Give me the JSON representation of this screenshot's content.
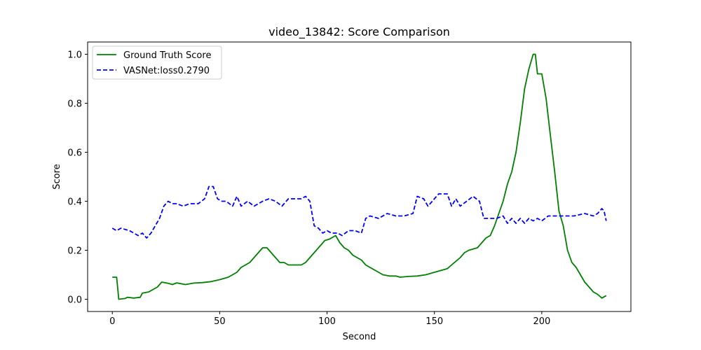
{
  "chart_data": {
    "type": "line",
    "title": "video_13842: Score Comparison",
    "xlabel": "Second",
    "ylabel": "Score",
    "xlim": [
      -11.5,
      241.5
    ],
    "ylim": [
      -0.05,
      1.05
    ],
    "xticks": [
      0,
      50,
      100,
      150,
      200
    ],
    "yticks": [
      0.0,
      0.2,
      0.4,
      0.6,
      0.8,
      1.0
    ],
    "xtick_labels": [
      "0",
      "50",
      "100",
      "150",
      "200"
    ],
    "ytick_labels": [
      "0.0",
      "0.2",
      "0.4",
      "0.6",
      "0.8",
      "1.0"
    ],
    "grid": false,
    "legend_position": "upper left",
    "series": [
      {
        "name": "Ground Truth Score",
        "color": "#008000",
        "style": "solid",
        "points": [
          [
            0,
            0.09
          ],
          [
            2,
            0.09
          ],
          [
            3,
            0.0
          ],
          [
            6,
            0.003
          ],
          [
            7,
            0.008
          ],
          [
            10,
            0.005
          ],
          [
            13,
            0.008
          ],
          [
            14,
            0.025
          ],
          [
            17,
            0.03
          ],
          [
            19,
            0.04
          ],
          [
            21,
            0.05
          ],
          [
            23,
            0.07
          ],
          [
            26,
            0.065
          ],
          [
            28,
            0.06
          ],
          [
            30,
            0.067
          ],
          [
            34,
            0.06
          ],
          [
            38,
            0.066
          ],
          [
            42,
            0.068
          ],
          [
            46,
            0.072
          ],
          [
            50,
            0.08
          ],
          [
            54,
            0.09
          ],
          [
            56,
            0.1
          ],
          [
            58,
            0.11
          ],
          [
            60,
            0.13
          ],
          [
            62,
            0.14
          ],
          [
            64,
            0.15
          ],
          [
            66,
            0.17
          ],
          [
            68,
            0.19
          ],
          [
            70,
            0.21
          ],
          [
            72,
            0.21
          ],
          [
            74,
            0.19
          ],
          [
            76,
            0.17
          ],
          [
            78,
            0.15
          ],
          [
            80,
            0.15
          ],
          [
            82,
            0.14
          ],
          [
            86,
            0.14
          ],
          [
            88,
            0.14
          ],
          [
            90,
            0.15
          ],
          [
            93,
            0.18
          ],
          [
            96,
            0.21
          ],
          [
            99,
            0.24
          ],
          [
            101,
            0.245
          ],
          [
            104,
            0.26
          ],
          [
            106,
            0.23
          ],
          [
            108,
            0.21
          ],
          [
            110,
            0.2
          ],
          [
            112,
            0.18
          ],
          [
            114,
            0.17
          ],
          [
            116,
            0.16
          ],
          [
            118,
            0.14
          ],
          [
            120,
            0.13
          ],
          [
            122,
            0.12
          ],
          [
            124,
            0.11
          ],
          [
            126,
            0.1
          ],
          [
            129,
            0.095
          ],
          [
            132,
            0.095
          ],
          [
            134,
            0.09
          ],
          [
            138,
            0.093
          ],
          [
            142,
            0.095
          ],
          [
            146,
            0.1
          ],
          [
            150,
            0.11
          ],
          [
            154,
            0.12
          ],
          [
            156,
            0.125
          ],
          [
            158,
            0.14
          ],
          [
            160,
            0.155
          ],
          [
            162,
            0.17
          ],
          [
            164,
            0.19
          ],
          [
            166,
            0.2
          ],
          [
            170,
            0.21
          ],
          [
            172,
            0.23
          ],
          [
            174,
            0.25
          ],
          [
            176,
            0.26
          ],
          [
            178,
            0.3
          ],
          [
            180,
            0.35
          ],
          [
            182,
            0.4
          ],
          [
            184,
            0.47
          ],
          [
            186,
            0.52
          ],
          [
            188,
            0.6
          ],
          [
            190,
            0.72
          ],
          [
            192,
            0.86
          ],
          [
            194,
            0.94
          ],
          [
            196,
            1.0
          ],
          [
            197,
            1.0
          ],
          [
            198,
            0.92
          ],
          [
            200,
            0.92
          ],
          [
            202,
            0.82
          ],
          [
            204,
            0.67
          ],
          [
            206,
            0.52
          ],
          [
            208,
            0.36
          ],
          [
            210,
            0.3
          ],
          [
            212,
            0.2
          ],
          [
            214,
            0.15
          ],
          [
            216,
            0.13
          ],
          [
            218,
            0.1
          ],
          [
            220,
            0.07
          ],
          [
            222,
            0.05
          ],
          [
            224,
            0.03
          ],
          [
            226,
            0.02
          ],
          [
            228,
            0.005
          ],
          [
            230,
            0.015
          ]
        ]
      },
      {
        "name": "VASNet:loss0.2790",
        "color": "#0000ff",
        "style": "dashed",
        "points": [
          [
            0,
            0.29
          ],
          [
            2,
            0.28
          ],
          [
            4,
            0.29
          ],
          [
            8,
            0.28
          ],
          [
            10,
            0.27
          ],
          [
            12,
            0.26
          ],
          [
            14,
            0.27
          ],
          [
            16,
            0.25
          ],
          [
            18,
            0.27
          ],
          [
            20,
            0.3
          ],
          [
            22,
            0.33
          ],
          [
            24,
            0.38
          ],
          [
            26,
            0.4
          ],
          [
            28,
            0.39
          ],
          [
            30,
            0.39
          ],
          [
            33,
            0.38
          ],
          [
            36,
            0.39
          ],
          [
            40,
            0.39
          ],
          [
            43,
            0.41
          ],
          [
            45,
            0.46
          ],
          [
            47,
            0.46
          ],
          [
            49,
            0.41
          ],
          [
            51,
            0.4
          ],
          [
            53,
            0.4
          ],
          [
            56,
            0.38
          ],
          [
            58,
            0.42
          ],
          [
            60,
            0.38
          ],
          [
            63,
            0.4
          ],
          [
            66,
            0.38
          ],
          [
            70,
            0.4
          ],
          [
            73,
            0.41
          ],
          [
            76,
            0.4
          ],
          [
            79,
            0.38
          ],
          [
            82,
            0.41
          ],
          [
            85,
            0.41
          ],
          [
            88,
            0.41
          ],
          [
            90,
            0.42
          ],
          [
            92,
            0.4
          ],
          [
            94,
            0.3
          ],
          [
            96,
            0.29
          ],
          [
            98,
            0.27
          ],
          [
            100,
            0.28
          ],
          [
            102,
            0.27
          ],
          [
            105,
            0.27
          ],
          [
            107,
            0.26
          ],
          [
            110,
            0.28
          ],
          [
            113,
            0.28
          ],
          [
            116,
            0.27
          ],
          [
            118,
            0.33
          ],
          [
            120,
            0.34
          ],
          [
            124,
            0.33
          ],
          [
            128,
            0.35
          ],
          [
            132,
            0.34
          ],
          [
            136,
            0.34
          ],
          [
            140,
            0.35
          ],
          [
            142,
            0.42
          ],
          [
            145,
            0.41
          ],
          [
            147,
            0.38
          ],
          [
            150,
            0.41
          ],
          [
            152,
            0.43
          ],
          [
            156,
            0.43
          ],
          [
            158,
            0.38
          ],
          [
            160,
            0.41
          ],
          [
            162,
            0.38
          ],
          [
            165,
            0.4
          ],
          [
            168,
            0.42
          ],
          [
            171,
            0.4
          ],
          [
            173,
            0.33
          ],
          [
            176,
            0.33
          ],
          [
            179,
            0.33
          ],
          [
            182,
            0.34
          ],
          [
            184,
            0.31
          ],
          [
            186,
            0.33
          ],
          [
            188,
            0.31
          ],
          [
            190,
            0.33
          ],
          [
            192,
            0.31
          ],
          [
            194,
            0.33
          ],
          [
            196,
            0.32
          ],
          [
            198,
            0.33
          ],
          [
            200,
            0.32
          ],
          [
            203,
            0.34
          ],
          [
            207,
            0.34
          ],
          [
            211,
            0.34
          ],
          [
            215,
            0.34
          ],
          [
            220,
            0.35
          ],
          [
            224,
            0.34
          ],
          [
            226,
            0.35
          ],
          [
            228,
            0.37
          ],
          [
            229,
            0.36
          ],
          [
            230,
            0.32
          ]
        ]
      }
    ]
  }
}
